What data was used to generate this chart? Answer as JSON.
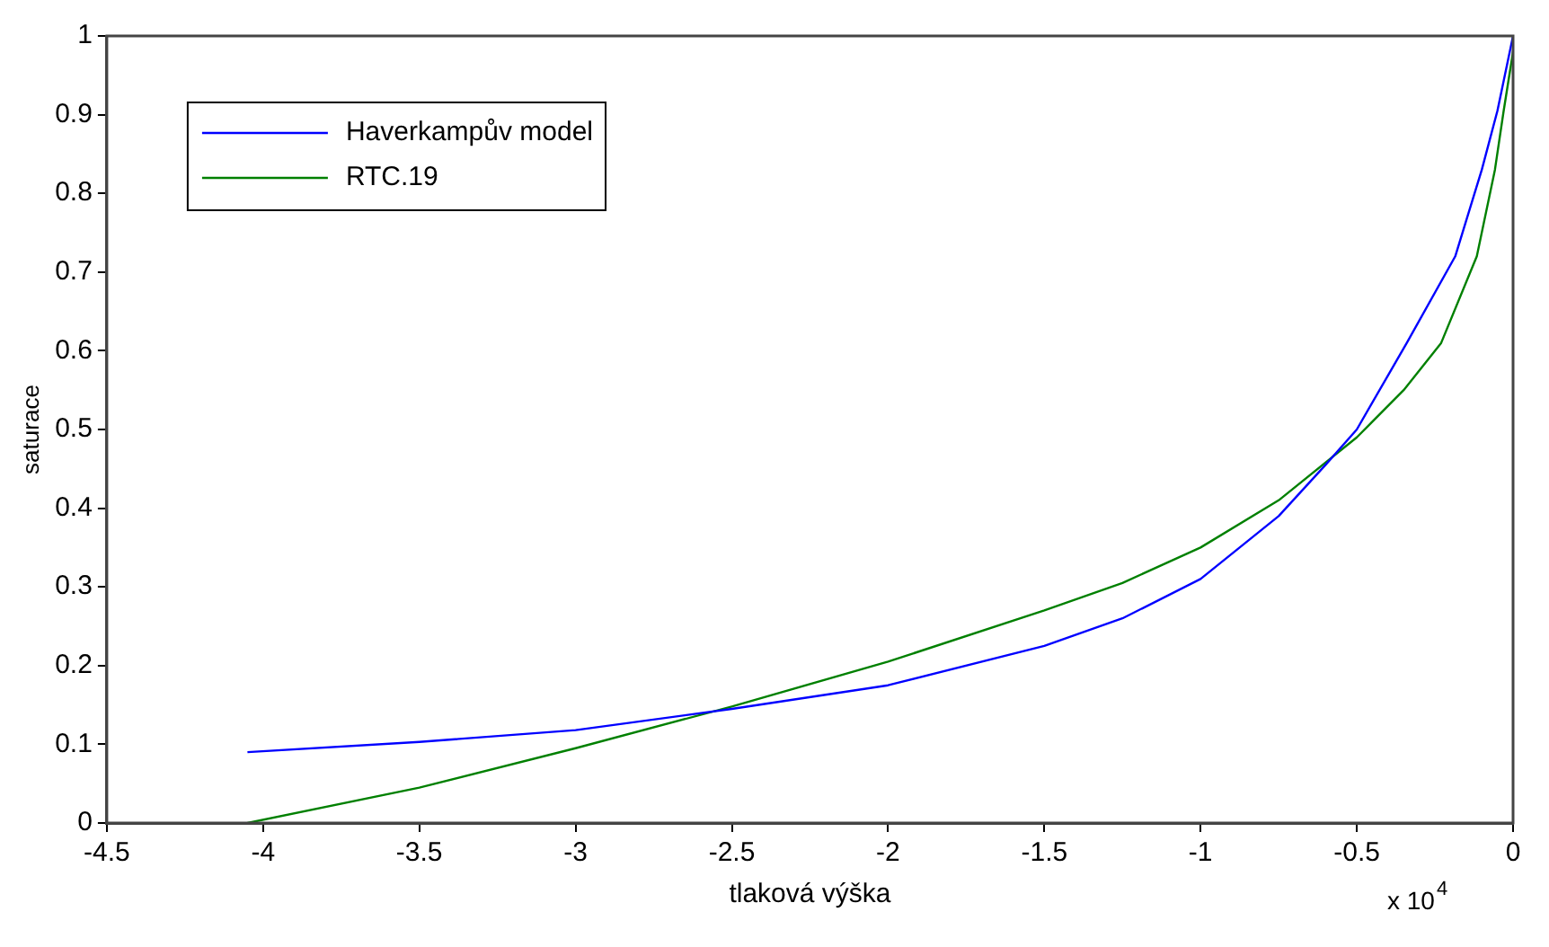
{
  "chart_data": {
    "type": "line",
    "xlabel": "tlaková výška",
    "ylabel": "saturace",
    "annotations": [
      "x 10$^{4}$"
    ],
    "xlim": [
      -4.5,
      0
    ],
    "xticks": [
      -4.5,
      -4,
      -3.5,
      -3,
      -2.5,
      -2,
      -1.5,
      -1,
      -0.5,
      0
    ],
    "ylim": [
      0,
      1
    ],
    "yticks": [
      0,
      0.1,
      0.2,
      0.3,
      0.4,
      0.5,
      0.6,
      0.7,
      0.8,
      0.9,
      1
    ],
    "grid": false,
    "legend": "top left",
    "marker": "none",
    "line_style": "solid",
    "series": [
      {
        "name": "Haverkampův model",
        "color": "#0000ff",
        "x": [
          -4.05,
          -3.5,
          -3,
          -2.5,
          -2,
          -1.5,
          -1.25,
          -1,
          -0.75,
          -0.6,
          -0.5,
          -0.34,
          -0.185,
          -0.1,
          -0.05,
          0
        ],
        "values": [
          0.09,
          0.103,
          0.118,
          0.145,
          0.175,
          0.225,
          0.26,
          0.31,
          0.39,
          0.455,
          0.5,
          0.61,
          0.72,
          0.83,
          0.905,
          1
        ]
      },
      {
        "name": "RTC.19",
        "color": "#008000",
        "x": [
          -4.05,
          -3.5,
          -3,
          -2.5,
          -2,
          -1.5,
          -1.25,
          -1,
          -0.75,
          -0.5,
          -0.35,
          -0.23,
          -0.116,
          -0.058,
          -0.03,
          0
        ],
        "values": [
          0,
          0.045,
          0.095,
          0.148,
          0.205,
          0.27,
          0.305,
          0.35,
          0.41,
          0.49,
          0.55,
          0.61,
          0.72,
          0.83,
          0.905,
          0.98
        ]
      }
    ]
  }
}
